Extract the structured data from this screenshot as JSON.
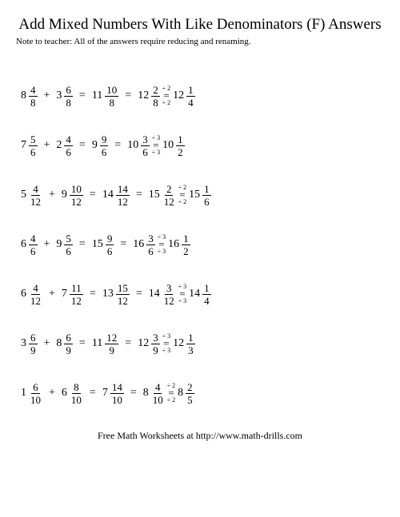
{
  "title": "Add Mixed Numbers With Like Denominators (F) Answers",
  "note": "Note to teacher: All of the answers require reducing and renaming.",
  "footer": "Free Math Worksheets at http://www.math-drills.com",
  "rows": [
    {
      "a_w": "8",
      "a_n": "4",
      "a_d": "8",
      "b_w": "3",
      "b_n": "6",
      "b_d": "8",
      "s_w": "11",
      "s_n": "10",
      "s_d": "8",
      "r_w": "12",
      "r_n": "2",
      "r_d": "8",
      "div": "2",
      "f_w": "12",
      "f_n": "1",
      "f_d": "4"
    },
    {
      "a_w": "7",
      "a_n": "5",
      "a_d": "6",
      "b_w": "2",
      "b_n": "4",
      "b_d": "6",
      "s_w": "9",
      "s_n": "9",
      "s_d": "6",
      "r_w": "10",
      "r_n": "3",
      "r_d": "6",
      "div": "3",
      "f_w": "10",
      "f_n": "1",
      "f_d": "2"
    },
    {
      "a_w": "5",
      "a_n": "4",
      "a_d": "12",
      "b_w": "9",
      "b_n": "10",
      "b_d": "12",
      "s_w": "14",
      "s_n": "14",
      "s_d": "12",
      "r_w": "15",
      "r_n": "2",
      "r_d": "12",
      "div": "2",
      "f_w": "15",
      "f_n": "1",
      "f_d": "6"
    },
    {
      "a_w": "6",
      "a_n": "4",
      "a_d": "6",
      "b_w": "9",
      "b_n": "5",
      "b_d": "6",
      "s_w": "15",
      "s_n": "9",
      "s_d": "6",
      "r_w": "16",
      "r_n": "3",
      "r_d": "6",
      "div": "3",
      "f_w": "16",
      "f_n": "1",
      "f_d": "2"
    },
    {
      "a_w": "6",
      "a_n": "4",
      "a_d": "12",
      "b_w": "7",
      "b_n": "11",
      "b_d": "12",
      "s_w": "13",
      "s_n": "15",
      "s_d": "12",
      "r_w": "14",
      "r_n": "3",
      "r_d": "12",
      "div": "3",
      "f_w": "14",
      "f_n": "1",
      "f_d": "4"
    },
    {
      "a_w": "3",
      "a_n": "6",
      "a_d": "9",
      "b_w": "8",
      "b_n": "6",
      "b_d": "9",
      "s_w": "11",
      "s_n": "12",
      "s_d": "9",
      "r_w": "12",
      "r_n": "3",
      "r_d": "9",
      "div": "3",
      "f_w": "12",
      "f_n": "1",
      "f_d": "3"
    },
    {
      "a_w": "1",
      "a_n": "6",
      "a_d": "10",
      "b_w": "6",
      "b_n": "8",
      "b_d": "10",
      "s_w": "7",
      "s_n": "14",
      "s_d": "10",
      "r_w": "8",
      "r_n": "4",
      "r_d": "10",
      "div": "2",
      "f_w": "8",
      "f_n": "2",
      "f_d": "5"
    }
  ]
}
